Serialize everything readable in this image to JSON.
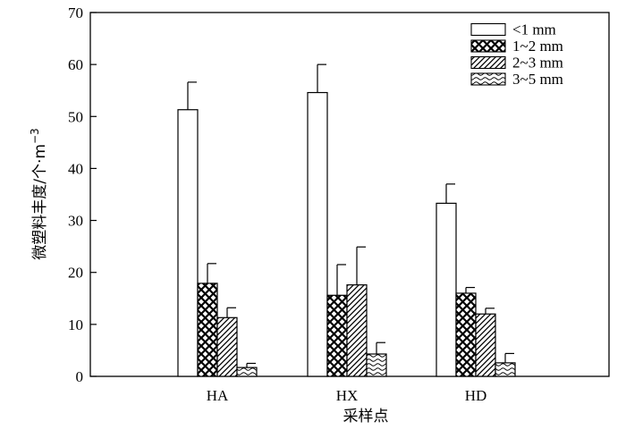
{
  "chart_data": {
    "type": "bar",
    "categories": [
      "HA",
      "HX",
      "HD"
    ],
    "series": [
      {
        "name": "<1 mm",
        "pattern": "blank",
        "values": [
          51.3,
          54.6,
          33.3
        ],
        "errors": [
          5.3,
          5.4,
          3.7
        ]
      },
      {
        "name": "1~2 mm",
        "pattern": "cross",
        "values": [
          17.9,
          15.6,
          16.0
        ],
        "errors": [
          3.8,
          5.9,
          1.1
        ]
      },
      {
        "name": "2~3 mm",
        "pattern": "diagonal",
        "values": [
          11.3,
          17.6,
          12.0
        ],
        "errors": [
          1.9,
          7.3,
          1.1
        ]
      },
      {
        "name": "3~5 mm",
        "pattern": "wave",
        "values": [
          1.7,
          4.3,
          2.6
        ],
        "errors": [
          0.8,
          2.2,
          1.8
        ]
      }
    ],
    "xlabel": "采样点",
    "ylabel": "微塑料丰度/个·m",
    "ylabel_sup": "−3",
    "ylim": [
      0,
      70
    ],
    "yticks": [
      "0",
      "10",
      "20",
      "30",
      "40",
      "50",
      "60",
      "70"
    ],
    "grid": false,
    "legend_position": "top-right",
    "colors": {
      "bar_fill": "#ffffff",
      "stroke": "#000000"
    }
  }
}
